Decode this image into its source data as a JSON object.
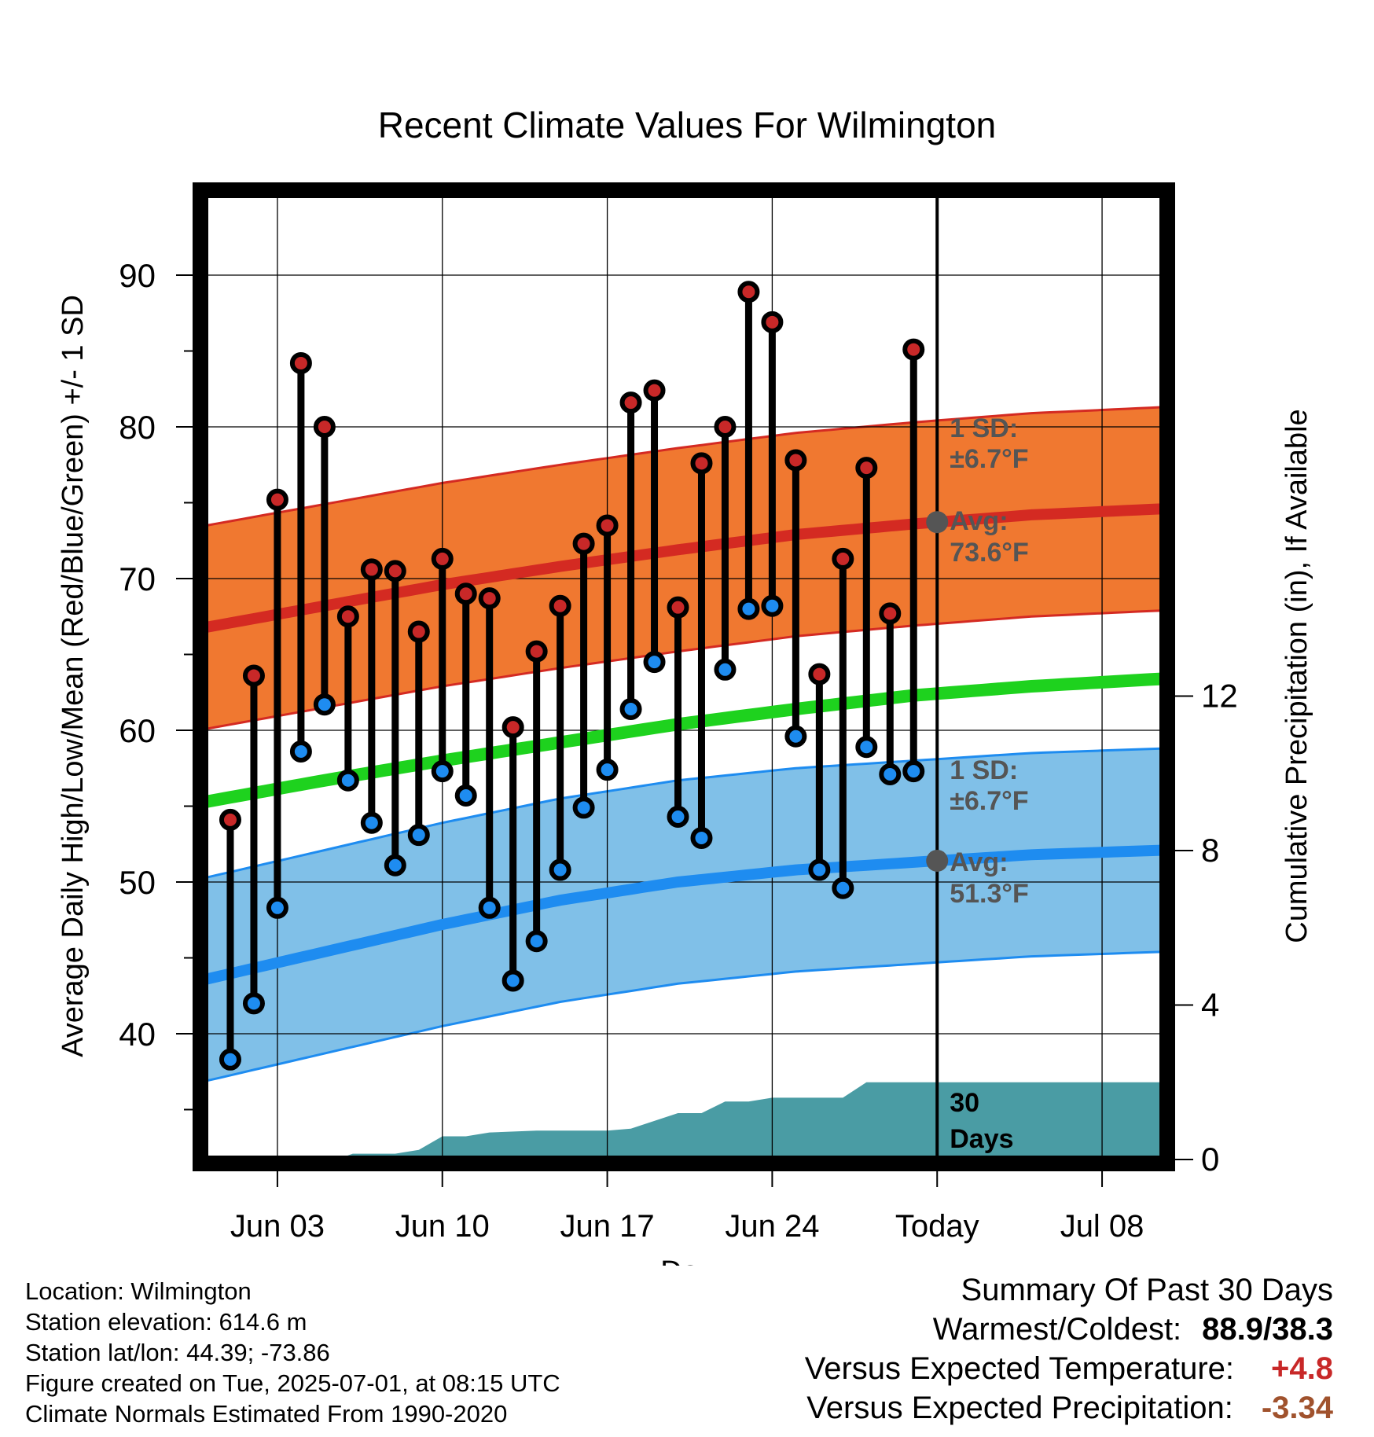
{
  "chart_data": {
    "type": "line",
    "title": "Recent Climate Values For Wilmington",
    "xlabel": "Day",
    "ylabel": "Average Daily High/Low/Mean (Red/Blue/Green) +/- 1 SD",
    "ylabel_right": "Cumulative Precipitation (in), If Available",
    "ylim": [
      30,
      95
    ],
    "y_ticks": [
      40,
      50,
      60,
      70,
      80,
      90
    ],
    "y_right_ticks": [
      0,
      4,
      8,
      12
    ],
    "x_tick_labels": [
      "Jun 03",
      "Jun 10",
      "Jun 17",
      "Jun 24",
      "Today",
      "Jul 08"
    ],
    "x_tick_days": [
      3,
      10,
      17,
      24,
      31,
      38
    ],
    "x_range_days": [
      -0.1,
      40.6
    ],
    "today_day": 31,
    "days": [
      1,
      2,
      3,
      4,
      5,
      6,
      7,
      8,
      9,
      10,
      11,
      12,
      13,
      14,
      15,
      16,
      17,
      18,
      19,
      20,
      21,
      22,
      23,
      24,
      25,
      26,
      27,
      28,
      29,
      30
    ],
    "daily_high": [
      54.1,
      63.6,
      75.2,
      84.2,
      80.0,
      67.5,
      70.6,
      70.5,
      66.5,
      71.3,
      69.0,
      68.7,
      60.2,
      65.2,
      68.2,
      72.3,
      73.5,
      81.6,
      82.4,
      68.1,
      77.6,
      80.0,
      88.9,
      86.9,
      77.8,
      63.7,
      71.3,
      77.3,
      67.7,
      85.1
    ],
    "daily_low": [
      38.3,
      42.0,
      48.3,
      58.6,
      61.7,
      56.7,
      53.9,
      51.1,
      53.1,
      57.3,
      55.7,
      48.3,
      43.5,
      46.1,
      50.8,
      54.9,
      57.4,
      61.4,
      64.5,
      54.3,
      52.9,
      64.0,
      68.0,
      68.2,
      59.6,
      50.8,
      49.6,
      58.9,
      57.1,
      57.3
    ],
    "normal_days": [
      0,
      5,
      10,
      15,
      20,
      25,
      30,
      35,
      40.6
    ],
    "normal_high": [
      66.8,
      68.2,
      69.6,
      70.8,
      71.9,
      72.9,
      73.6,
      74.2,
      74.6
    ],
    "normal_high_sd": 6.7,
    "normal_mean": [
      55.3,
      56.7,
      58.0,
      59.2,
      60.4,
      61.4,
      62.3,
      62.9,
      63.4
    ],
    "normal_low": [
      43.6,
      45.4,
      47.2,
      48.8,
      50.0,
      50.8,
      51.3,
      51.8,
      52.1
    ],
    "normal_low_sd": 6.7,
    "precip_days": [
      0,
      5.5,
      6.2,
      7,
      8,
      9,
      10,
      11,
      12,
      14,
      17,
      18,
      19,
      20,
      21,
      22,
      23,
      24,
      25,
      26,
      27,
      28,
      29,
      30,
      40.6
    ],
    "precip_cum": [
      0,
      0,
      0.15,
      0.15,
      0.15,
      0.25,
      0.6,
      0.6,
      0.7,
      0.75,
      0.75,
      0.8,
      1.0,
      1.2,
      1.2,
      1.5,
      1.5,
      1.6,
      1.6,
      1.6,
      1.6,
      2.0,
      2.0,
      2.0,
      2.0
    ],
    "precip_ylim": [
      0,
      26.5
    ],
    "colors": {
      "high_band": "#f07830",
      "high_line": "#d42a22",
      "low_band": "#80c0e8",
      "low_line": "#1e8cf0",
      "mean_line": "#1ed21e",
      "precip": "#4a9ca4",
      "high_dot": "#c82828",
      "low_dot": "#1e8cf0",
      "annotation": "#555555"
    }
  },
  "annotations": {
    "high_sd_label": "1 SD:",
    "high_sd_value": "±6.7°F",
    "high_avg_label": "Avg:",
    "high_avg_value": "73.6°F",
    "low_sd_label": "1 SD:",
    "low_sd_value": "±6.7°F",
    "low_avg_label": "Avg:",
    "low_avg_value": "51.3°F",
    "precip_label_1": "30",
    "precip_label_2": "Days"
  },
  "footer": {
    "location": "Location: Wilmington",
    "elevation": "Station elevation: 614.6 m",
    "latlon": "Station lat/lon: 44.39; -73.86",
    "created": "Figure created on Tue, 2025-07-01, at 08:15 UTC",
    "normals": "Climate Normals Estimated From 1990-2020"
  },
  "summary": {
    "title": "Summary Of Past 30 Days",
    "warm_cold_label": "Warmest/Coldest:",
    "warm_cold_value": "88.9/38.3",
    "temp_label": "Versus Expected Temperature:",
    "temp_value": "+4.8",
    "temp_color": "#c82828",
    "precip_label": "Versus Expected Precipitation:",
    "precip_value": "-3.34",
    "precip_color": "#a0522d"
  }
}
